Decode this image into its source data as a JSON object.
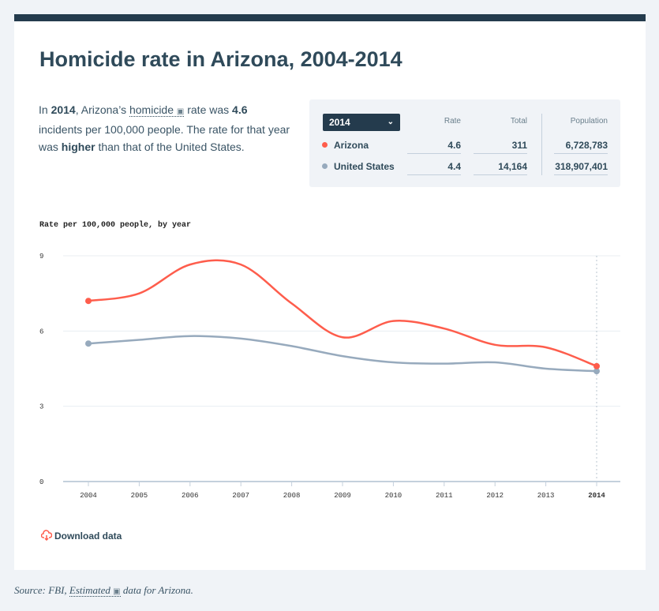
{
  "title": "Homicide rate in Arizona, 2004-2014",
  "summary": {
    "p1": "In ",
    "year": "2014",
    "p2": ", Arizona’s ",
    "term": "homicide",
    "book_icon": "📖",
    "p3": " rate was ",
    "rate": "4.6",
    "p4": " incidents per 100,000 people. The rate for that year was ",
    "comparison": "higher",
    "p5": " than that of the United States."
  },
  "panel": {
    "selected_year": "2014",
    "columns": [
      "Rate",
      "Total",
      "Population"
    ],
    "rows": [
      {
        "label": "Arizona",
        "color": "#fe5d4c",
        "rate": "4.6",
        "total": "311",
        "population": "6,728,783"
      },
      {
        "label": "United States",
        "color": "#97aabd",
        "rate": "4.4",
        "total": "14,164",
        "population": "318,907,401"
      }
    ]
  },
  "chart_data": {
    "type": "line",
    "ylabel": "Rate per 100,000 people, by year",
    "x": [
      2004,
      2005,
      2006,
      2007,
      2008,
      2009,
      2010,
      2011,
      2012,
      2013,
      2014
    ],
    "x_tick_labels": [
      "2004",
      "2005",
      "2006",
      "2007",
      "2008",
      "2009",
      "2010",
      "2011",
      "2012",
      "2013",
      "2014"
    ],
    "y_ticks": [
      "0",
      "3",
      "6",
      "9"
    ],
    "ylim": [
      0,
      9
    ],
    "grid": true,
    "highlight_x": 2014,
    "series": [
      {
        "name": "Arizona",
        "color": "#fe5d4c",
        "values": [
          7.2,
          7.5,
          8.65,
          8.65,
          7.1,
          5.75,
          6.4,
          6.1,
          5.45,
          5.35,
          4.6
        ]
      },
      {
        "name": "United States",
        "color": "#97aabd",
        "values": [
          5.5,
          5.65,
          5.8,
          5.7,
          5.4,
          5.0,
          4.75,
          4.7,
          4.75,
          4.5,
          4.4
        ]
      }
    ]
  },
  "download_label": "Download data",
  "source": {
    "p1": "Source: FBI, ",
    "term": "Estimated",
    "book_icon": "📖",
    "p2": " data for Arizona."
  }
}
